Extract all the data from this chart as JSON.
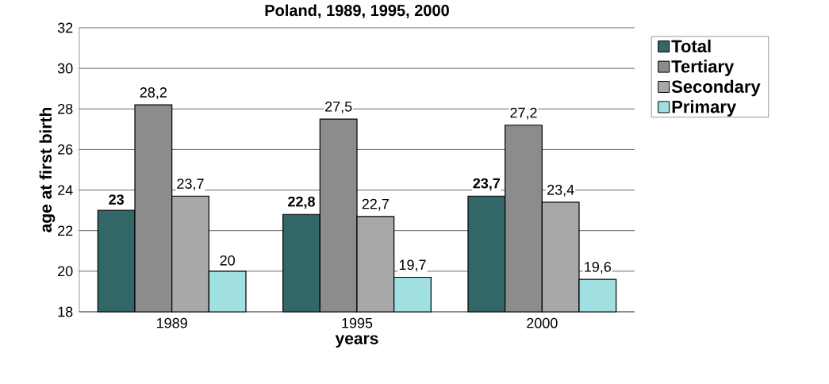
{
  "chart_data": {
    "type": "bar",
    "title": "Poland, 1989, 1995, 2000",
    "xlabel": "years",
    "ylabel": "age at first birth",
    "categories": [
      "1989",
      "1995",
      "2000"
    ],
    "series": [
      {
        "name": "Total",
        "color": "#336666",
        "values": [
          23,
          22.8,
          23.7
        ],
        "value_labels": [
          "23",
          "22,8",
          "23,7"
        ]
      },
      {
        "name": "Tertiary",
        "color": "#8c8c8c",
        "values": [
          28.2,
          27.5,
          27.2
        ],
        "value_labels": [
          "28,2",
          "27,5",
          "27,2"
        ]
      },
      {
        "name": "Secondary",
        "color": "#a8a8a8",
        "values": [
          23.7,
          22.7,
          23.4
        ],
        "value_labels": [
          "23,7",
          "22,7",
          "23,4"
        ]
      },
      {
        "name": "Primary",
        "color": "#a0e0e0",
        "values": [
          20,
          19.7,
          19.6
        ],
        "value_labels": [
          "20",
          "19,7",
          "19,6"
        ]
      }
    ],
    "ylim": [
      18,
      32
    ],
    "yticks": [
      18,
      20,
      22,
      24,
      26,
      28,
      30,
      32
    ],
    "grid": "y",
    "legend": "top right"
  }
}
